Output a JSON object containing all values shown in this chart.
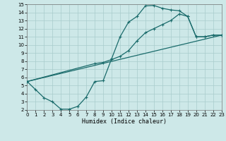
{
  "background_color": "#cde8e8",
  "grid_color": "#a8cccc",
  "line_color": "#1a6b6b",
  "xlabel": "Humidex (Indice chaleur)",
  "xlim": [
    0,
    23
  ],
  "ylim": [
    2,
    15
  ],
  "curve1_x": [
    0,
    1,
    2,
    3,
    4,
    5,
    6,
    7,
    8,
    9,
    10,
    11,
    12,
    13,
    14,
    15,
    16,
    17,
    18,
    19,
    20,
    21,
    22,
    23
  ],
  "curve1_y": [
    5.5,
    4.5,
    3.5,
    3.0,
    2.1,
    2.1,
    2.45,
    3.6,
    5.5,
    5.6,
    8.3,
    11.0,
    12.8,
    13.5,
    14.8,
    14.85,
    14.5,
    14.3,
    14.2,
    13.5,
    11.0,
    11.0,
    11.2,
    11.2
  ],
  "curve2_x": [
    0,
    8,
    9,
    10,
    11,
    12,
    13,
    14,
    15,
    16,
    17,
    18,
    19,
    20,
    21,
    22,
    23
  ],
  "curve2_y": [
    5.5,
    7.7,
    7.85,
    8.2,
    8.6,
    9.3,
    10.5,
    11.5,
    12.0,
    12.5,
    13.0,
    13.8,
    13.5,
    11.0,
    11.0,
    11.2,
    11.2
  ],
  "curve3_x": [
    0,
    23
  ],
  "curve3_y": [
    5.5,
    11.2
  ],
  "tick_fontsize": 5,
  "xlabel_fontsize": 6
}
